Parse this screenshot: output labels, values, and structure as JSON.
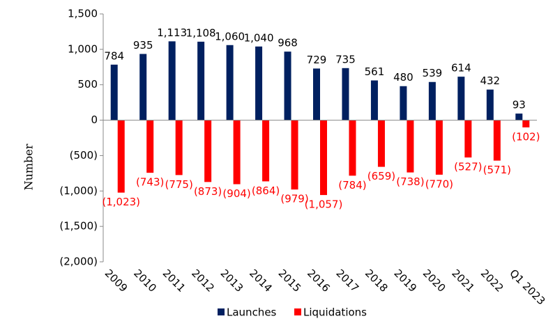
{
  "chart_data": {
    "type": "bar",
    "y_label": "Number",
    "categories": [
      "2009",
      "2010",
      "2011",
      "2012",
      "2013",
      "2014",
      "2015",
      "2016",
      "2017",
      "2018",
      "2019",
      "2020",
      "2021",
      "2022",
      "Q1 2023"
    ],
    "series": [
      {
        "name": "Launches",
        "color": "#002060",
        "label_color": "#000000",
        "values": [
          784,
          935,
          1113,
          1108,
          1060,
          1040,
          968,
          729,
          735,
          561,
          480,
          539,
          614,
          432,
          93
        ],
        "value_labels": [
          "784",
          "935",
          "1,113",
          "1,108",
          "1,060",
          "1,040",
          "968",
          "729",
          "735",
          "561",
          "480",
          "539",
          "614",
          "432",
          "93"
        ]
      },
      {
        "name": "Liquidations",
        "color": "#ff0000",
        "label_color": "#ff0000",
        "values": [
          -1023,
          -743,
          -775,
          -873,
          -904,
          -864,
          -979,
          -1057,
          -784,
          -659,
          -738,
          -770,
          -527,
          -571,
          -102
        ],
        "value_labels": [
          "(1,023)",
          "(743)",
          "(775)",
          "(873)",
          "(904)",
          "(864)",
          "(979)",
          "(1,057)",
          "(784)",
          "(659)",
          "(738)",
          "(770)",
          "(527)",
          "(571)",
          "(102)"
        ]
      }
    ],
    "ylim": [
      -2000,
      1500
    ],
    "yticks": [
      {
        "value": -2000,
        "label": "(2,000)"
      },
      {
        "value": -1500,
        "label": "(1,500)"
      },
      {
        "value": -1000,
        "label": "(1,000)"
      },
      {
        "value": -500,
        "label": "(500)"
      },
      0,
      500,
      {
        "value": 1000,
        "label": "1,000"
      },
      {
        "value": 1500,
        "label": "1,500"
      }
    ],
    "legend": "bottom"
  }
}
